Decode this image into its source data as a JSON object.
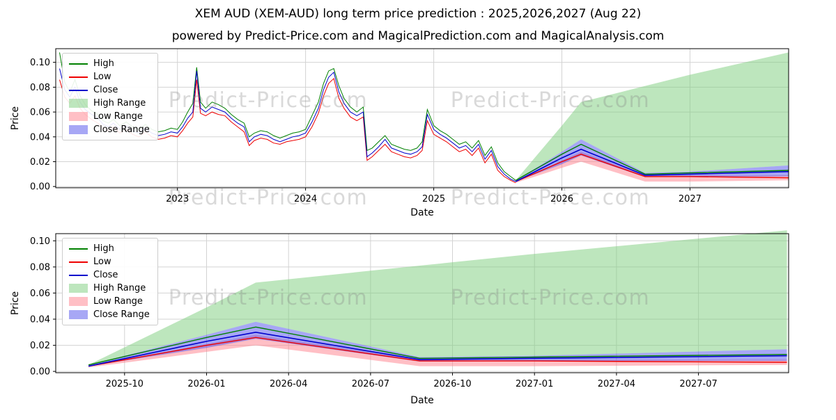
{
  "page": {
    "title": "XEM AUD (XEM-AUD) long term price prediction : 2025,2026,2027 (Aug 22)",
    "subtitle": "powered by Predict-Price.com and MagicalPrediction.com and MagicalAnalysis.com",
    "watermark_text": "Predict-Price.com"
  },
  "colors": {
    "high_line": "#008000",
    "low_line": "#ee0000",
    "close_line": "#0000cc",
    "high_range_fill": "rgba(124,205,124,0.5)",
    "low_range_fill": "rgba(255,128,140,0.5)",
    "close_range_fill": "rgba(80,80,235,0.5)",
    "grid": "#d3d3d3",
    "frame": "#000000",
    "watermark": "rgba(128,128,128,0.3)",
    "text": "#000000"
  },
  "legend": {
    "items": [
      {
        "key": "high",
        "label": "High",
        "swatch": "line",
        "color_ref": "high_line"
      },
      {
        "key": "low",
        "label": "Low",
        "swatch": "line",
        "color_ref": "low_line"
      },
      {
        "key": "close",
        "label": "Close",
        "swatch": "line",
        "color_ref": "close_line"
      },
      {
        "key": "high-range",
        "label": "High Range",
        "swatch": "patch",
        "color_ref": "high_range_fill"
      },
      {
        "key": "low-range",
        "label": "Low Range",
        "swatch": "patch",
        "color_ref": "low_range_fill"
      },
      {
        "key": "close-range",
        "label": "Close Range",
        "swatch": "patch",
        "color_ref": "close_range_fill"
      }
    ]
  },
  "chart_data": [
    {
      "id": "history-and-forecast",
      "type": "line",
      "xlabel": "Date",
      "ylabel": "Price",
      "xlim": [
        2022.05,
        2027.77
      ],
      "ylim": [
        -0.001,
        0.111
      ],
      "grid": true,
      "legend_position": "upper-left",
      "xticks": [
        {
          "v": 2023,
          "label": "2023"
        },
        {
          "v": 2024,
          "label": "2024"
        },
        {
          "v": 2025,
          "label": "2025"
        },
        {
          "v": 2026,
          "label": "2026"
        },
        {
          "v": 2027,
          "label": "2027"
        }
      ],
      "yticks": [
        {
          "v": 0.0,
          "label": "0.00"
        },
        {
          "v": 0.02,
          "label": "0.02"
        },
        {
          "v": 0.04,
          "label": "0.04"
        },
        {
          "v": 0.06,
          "label": "0.06"
        },
        {
          "v": 0.08,
          "label": "0.08"
        },
        {
          "v": 0.1,
          "label": "0.10"
        }
      ],
      "watermarks": [
        {
          "fx": 0.29,
          "fy": 0.42
        },
        {
          "fx": 0.675,
          "fy": 0.42
        },
        {
          "fx": 0.29,
          "fy": 1.12
        },
        {
          "fx": 0.675,
          "fy": 1.12
        }
      ],
      "historical": {
        "x": [
          2022.08,
          2022.12,
          2022.16,
          2022.2,
          2022.24,
          2022.28,
          2022.33,
          2022.38,
          2022.42,
          2022.46,
          2022.5,
          2022.55,
          2022.6,
          2022.65,
          2022.7,
          2022.75,
          2022.8,
          2022.85,
          2022.9,
          2022.95,
          2023.0,
          2023.04,
          2023.08,
          2023.12,
          2023.15,
          2023.18,
          2023.22,
          2023.27,
          2023.32,
          2023.37,
          2023.42,
          2023.47,
          2023.52,
          2023.56,
          2023.6,
          2023.65,
          2023.7,
          2023.75,
          2023.8,
          2023.85,
          2023.9,
          2023.95,
          2024.0,
          2024.05,
          2024.1,
          2024.14,
          2024.18,
          2024.22,
          2024.26,
          2024.3,
          2024.35,
          2024.4,
          2024.45,
          2024.48,
          2024.52,
          2024.57,
          2024.62,
          2024.67,
          2024.72,
          2024.77,
          2024.82,
          2024.87,
          2024.91,
          2024.95,
          2025.0,
          2025.05,
          2025.1,
          2025.15,
          2025.2,
          2025.25,
          2025.3,
          2025.35,
          2025.4,
          2025.45,
          2025.5,
          2025.55,
          2025.6,
          2025.64
        ],
        "high": [
          0.108,
          0.084,
          0.076,
          0.086,
          0.073,
          0.066,
          0.061,
          0.058,
          0.053,
          0.051,
          0.054,
          0.049,
          0.052,
          0.048,
          0.046,
          0.05,
          0.046,
          0.044,
          0.045,
          0.047,
          0.046,
          0.052,
          0.06,
          0.067,
          0.096,
          0.068,
          0.063,
          0.068,
          0.066,
          0.063,
          0.058,
          0.054,
          0.051,
          0.04,
          0.043,
          0.045,
          0.044,
          0.041,
          0.039,
          0.041,
          0.043,
          0.044,
          0.046,
          0.057,
          0.068,
          0.083,
          0.093,
          0.095,
          0.081,
          0.071,
          0.064,
          0.06,
          0.064,
          0.029,
          0.031,
          0.036,
          0.041,
          0.034,
          0.032,
          0.03,
          0.029,
          0.031,
          0.036,
          0.062,
          0.049,
          0.045,
          0.042,
          0.038,
          0.034,
          0.036,
          0.031,
          0.037,
          0.025,
          0.032,
          0.019,
          0.012,
          0.008,
          0.005
        ],
        "low": [
          0.086,
          0.072,
          0.067,
          0.073,
          0.063,
          0.058,
          0.054,
          0.051,
          0.047,
          0.045,
          0.048,
          0.043,
          0.046,
          0.042,
          0.04,
          0.044,
          0.04,
          0.038,
          0.039,
          0.041,
          0.04,
          0.045,
          0.051,
          0.056,
          0.086,
          0.059,
          0.057,
          0.06,
          0.058,
          0.057,
          0.052,
          0.048,
          0.044,
          0.033,
          0.037,
          0.039,
          0.038,
          0.035,
          0.034,
          0.036,
          0.037,
          0.038,
          0.04,
          0.048,
          0.059,
          0.073,
          0.083,
          0.087,
          0.071,
          0.063,
          0.056,
          0.053,
          0.056,
          0.021,
          0.024,
          0.029,
          0.034,
          0.028,
          0.026,
          0.024,
          0.023,
          0.025,
          0.029,
          0.053,
          0.042,
          0.039,
          0.036,
          0.032,
          0.028,
          0.03,
          0.025,
          0.031,
          0.019,
          0.026,
          0.013,
          0.008,
          0.005,
          0.003
        ],
        "close": [
          0.095,
          0.078,
          0.072,
          0.08,
          0.068,
          0.062,
          0.058,
          0.055,
          0.05,
          0.048,
          0.051,
          0.046,
          0.049,
          0.045,
          0.043,
          0.047,
          0.043,
          0.041,
          0.042,
          0.044,
          0.043,
          0.048,
          0.055,
          0.06,
          0.093,
          0.063,
          0.06,
          0.064,
          0.062,
          0.06,
          0.055,
          0.051,
          0.048,
          0.036,
          0.04,
          0.042,
          0.041,
          0.038,
          0.036,
          0.038,
          0.04,
          0.041,
          0.043,
          0.052,
          0.063,
          0.078,
          0.088,
          0.092,
          0.076,
          0.067,
          0.06,
          0.057,
          0.06,
          0.024,
          0.027,
          0.032,
          0.038,
          0.031,
          0.029,
          0.027,
          0.026,
          0.028,
          0.032,
          0.058,
          0.046,
          0.042,
          0.039,
          0.035,
          0.031,
          0.033,
          0.028,
          0.034,
          0.022,
          0.029,
          0.016,
          0.01,
          0.006,
          0.004
        ]
      },
      "forecast": {
        "x": [
          2025.64,
          2026.0,
          2026.15,
          2026.65,
          2027.0,
          2027.77
        ],
        "high": [
          0.005,
          0.026,
          0.034,
          0.01,
          0.011,
          0.013
        ],
        "low": [
          0.004,
          0.02,
          0.026,
          0.008,
          0.008,
          0.007
        ],
        "close": [
          0.004,
          0.023,
          0.03,
          0.009,
          0.01,
          0.012
        ],
        "high_range": {
          "top": [
            0.005,
            0.049,
            0.068,
            0.081,
            0.09,
            0.108
          ],
          "bottom": [
            0.005,
            0.028,
            0.038,
            0.011,
            0.012,
            0.017
          ]
        },
        "close_range": {
          "top": [
            0.005,
            0.028,
            0.038,
            0.011,
            0.012,
            0.017
          ],
          "bottom": [
            0.004,
            0.018,
            0.025,
            0.0075,
            0.008,
            0.008
          ]
        },
        "low_range": {
          "top": [
            0.004,
            0.021,
            0.028,
            0.009,
            0.009,
            0.009
          ],
          "bottom": [
            0.003,
            0.015,
            0.02,
            0.004,
            0.004,
            0.005
          ]
        }
      }
    },
    {
      "id": "forecast-detail",
      "type": "line",
      "xlabel": "Date",
      "ylabel": "Price",
      "xlim": [
        2025.54,
        2027.775
      ],
      "ylim": [
        -0.001,
        0.1055
      ],
      "grid": true,
      "legend_position": "upper-left",
      "xticks": [
        {
          "v": 2025.75,
          "label": "2025-10"
        },
        {
          "v": 2026.0,
          "label": "2026-01"
        },
        {
          "v": 2026.25,
          "label": "2026-04"
        },
        {
          "v": 2026.5,
          "label": "2026-07"
        },
        {
          "v": 2026.75,
          "label": "2026-10"
        },
        {
          "v": 2027.0,
          "label": "2027-01"
        },
        {
          "v": 2027.25,
          "label": "2027-04"
        },
        {
          "v": 2027.5,
          "label": "2027-07"
        }
      ],
      "yticks": [
        {
          "v": 0.0,
          "label": "0.00"
        },
        {
          "v": 0.02,
          "label": "0.02"
        },
        {
          "v": 0.04,
          "label": "0.04"
        },
        {
          "v": 0.06,
          "label": "0.06"
        },
        {
          "v": 0.08,
          "label": "0.08"
        },
        {
          "v": 0.1,
          "label": "0.10"
        }
      ],
      "watermarks": [
        {
          "fx": 0.29,
          "fy": 0.51
        },
        {
          "fx": 0.675,
          "fy": 0.51
        }
      ],
      "forecast": {
        "x": [
          2025.64,
          2026.0,
          2026.15,
          2026.65,
          2027.0,
          2027.77
        ],
        "high": [
          0.005,
          0.026,
          0.034,
          0.01,
          0.011,
          0.013
        ],
        "low": [
          0.004,
          0.02,
          0.026,
          0.008,
          0.008,
          0.007
        ],
        "close": [
          0.004,
          0.023,
          0.03,
          0.009,
          0.01,
          0.012
        ],
        "high_range": {
          "top": [
            0.005,
            0.049,
            0.068,
            0.081,
            0.09,
            0.108
          ],
          "bottom": [
            0.005,
            0.028,
            0.038,
            0.011,
            0.012,
            0.017
          ]
        },
        "close_range": {
          "top": [
            0.005,
            0.028,
            0.038,
            0.011,
            0.012,
            0.017
          ],
          "bottom": [
            0.004,
            0.018,
            0.025,
            0.0075,
            0.008,
            0.008
          ]
        },
        "low_range": {
          "top": [
            0.004,
            0.021,
            0.028,
            0.009,
            0.009,
            0.009
          ],
          "bottom": [
            0.003,
            0.015,
            0.02,
            0.004,
            0.004,
            0.005
          ]
        }
      }
    }
  ]
}
